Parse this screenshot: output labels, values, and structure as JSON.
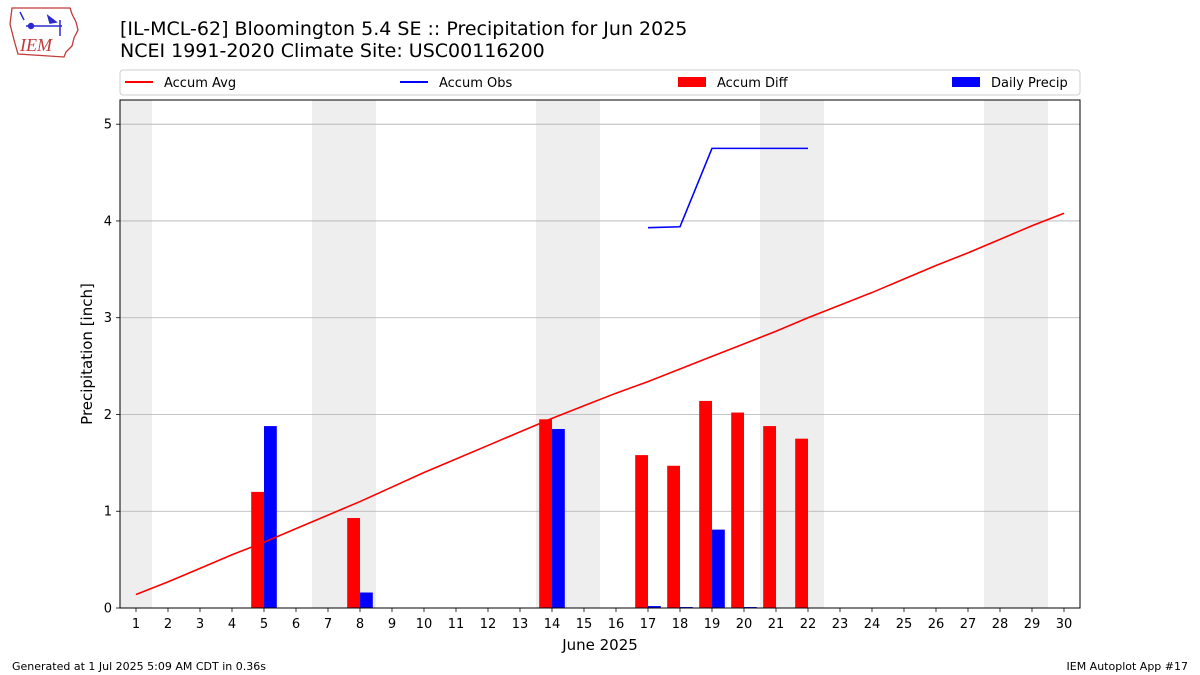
{
  "title_line1": "[IL-MCL-62] Bloomington 5.4 SE :: Precipitation for Jun 2025",
  "title_line2": "NCEI 1991-2020 Climate Site: USC00116200",
  "logo_text": "IEM",
  "footer_left": "Generated at 1 Jul 2025 5:09 AM CDT in 0.36s",
  "footer_right": "IEM Autoplot App #17",
  "colors": {
    "avg": "#ff0000",
    "obs": "#0000ff",
    "diff": "#ff0000",
    "daily": "#0000ff",
    "weekend": "#eeeeee",
    "grid": "#b0b0b0"
  },
  "legend": [
    {
      "key": "avg",
      "label": "Accum Avg",
      "kind": "line"
    },
    {
      "key": "obs",
      "label": "Accum Obs",
      "kind": "line"
    },
    {
      "key": "diff",
      "label": "Accum Diff",
      "kind": "bar"
    },
    {
      "key": "daily",
      "label": "Daily Precip",
      "kind": "bar"
    }
  ],
  "chart_data": {
    "type": "bar",
    "xlabel": "June 2025",
    "ylabel": "Precipitation [inch]",
    "xlim": [
      0.5,
      30.5
    ],
    "ylim": [
      0,
      5.25
    ],
    "yticks": [
      0,
      1,
      2,
      3,
      4,
      5
    ],
    "xticks": [
      1,
      2,
      3,
      4,
      5,
      6,
      7,
      8,
      9,
      10,
      11,
      12,
      13,
      14,
      15,
      16,
      17,
      18,
      19,
      20,
      21,
      22,
      23,
      24,
      25,
      26,
      27,
      28,
      29,
      30
    ],
    "grid": "y",
    "legend_position": "top",
    "weekend_days": [
      1,
      7,
      8,
      14,
      15,
      21,
      22,
      28,
      29
    ],
    "series": [
      {
        "key": "avg",
        "type": "line",
        "x": [
          1,
          2,
          3,
          4,
          5,
          6,
          7,
          8,
          9,
          10,
          11,
          12,
          13,
          14,
          15,
          16,
          17,
          18,
          19,
          20,
          21,
          22,
          23,
          24,
          25,
          26,
          27,
          28,
          29,
          30
        ],
        "values": [
          0.14,
          0.27,
          0.41,
          0.55,
          0.68,
          0.82,
          0.96,
          1.1,
          1.25,
          1.4,
          1.54,
          1.68,
          1.82,
          1.96,
          2.09,
          2.22,
          2.34,
          2.47,
          2.6,
          2.73,
          2.86,
          3.0,
          3.13,
          3.26,
          3.4,
          3.54,
          3.67,
          3.81,
          3.95,
          4.08
        ]
      },
      {
        "key": "obs",
        "type": "line",
        "x": [
          17,
          18,
          19,
          20,
          21,
          22
        ],
        "values": [
          3.93,
          3.94,
          4.75,
          4.75,
          4.75,
          4.75
        ]
      },
      {
        "key": "diff",
        "type": "bar",
        "x": [
          5,
          8,
          14,
          17,
          18,
          19,
          20,
          21,
          22
        ],
        "values": [
          1.2,
          0.93,
          1.95,
          1.58,
          1.47,
          2.14,
          2.02,
          1.88,
          1.75
        ]
      },
      {
        "key": "daily",
        "type": "bar",
        "x": [
          5,
          8,
          14,
          17,
          18,
          19,
          20
        ],
        "values": [
          1.88,
          0.16,
          1.85,
          0.02,
          0.01,
          0.81,
          0.01
        ]
      }
    ]
  }
}
